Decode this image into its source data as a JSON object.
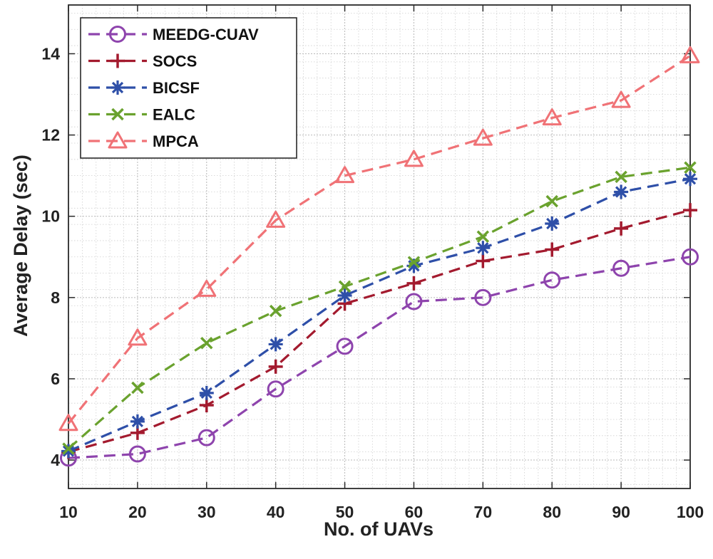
{
  "chart_data": {
    "type": "line",
    "title": "",
    "xlabel": "No. of UAVs",
    "ylabel": "Average Delay (sec)",
    "x": [
      10,
      20,
      30,
      40,
      50,
      60,
      70,
      80,
      90,
      100
    ],
    "xlim": [
      10,
      100
    ],
    "ylim": [
      3.3,
      15.2
    ],
    "x_ticks": [
      "10",
      "20",
      "30",
      "40",
      "50",
      "60",
      "70",
      "80",
      "90",
      "100"
    ],
    "y_ticks": [
      "4",
      "6",
      "8",
      "10",
      "12",
      "14"
    ],
    "grid": true,
    "minor_grid": true,
    "legend_position": "top-left",
    "series": [
      {
        "name": "MEEDG-CUAV",
        "marker": "circle",
        "color": "#8e44ad",
        "values": [
          4.05,
          4.15,
          4.55,
          5.75,
          6.8,
          7.9,
          8.0,
          8.43,
          8.72,
          9.0
        ]
      },
      {
        "name": "SOCS",
        "marker": "plus",
        "color": "#a31a2e",
        "values": [
          4.2,
          4.67,
          5.35,
          6.3,
          7.85,
          8.35,
          8.9,
          9.18,
          9.7,
          10.15
        ]
      },
      {
        "name": "BICSF",
        "marker": "asterisk",
        "color": "#2e4fa8",
        "values": [
          4.22,
          4.95,
          5.65,
          6.85,
          8.05,
          8.78,
          9.22,
          9.82,
          10.6,
          10.92
        ]
      },
      {
        "name": "EALC",
        "marker": "x",
        "color": "#6aa22e",
        "values": [
          4.28,
          5.78,
          6.88,
          7.67,
          8.27,
          8.87,
          9.5,
          10.37,
          10.97,
          11.2
        ]
      },
      {
        "name": "MPCA",
        "marker": "triangle",
        "color": "#f07276",
        "values": [
          4.9,
          7.0,
          8.2,
          9.9,
          11.0,
          11.4,
          11.92,
          12.42,
          12.85,
          13.95
        ]
      }
    ]
  }
}
